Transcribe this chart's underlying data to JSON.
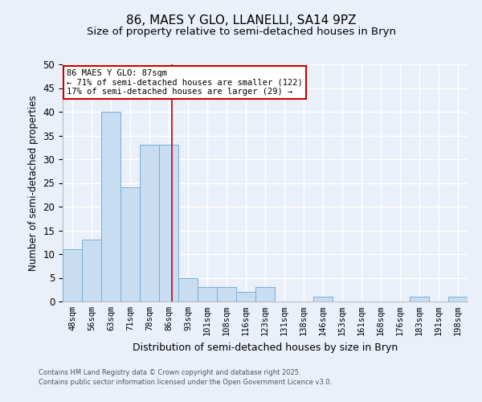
{
  "title": "86, MAES Y GLO, LLANELLI, SA14 9PZ",
  "subtitle": "Size of property relative to semi-detached houses in Bryn",
  "xlabel": "Distribution of semi-detached houses by size in Bryn",
  "ylabel": "Number of semi-detached properties",
  "bin_labels": [
    "48sqm",
    "56sqm",
    "63sqm",
    "71sqm",
    "78sqm",
    "86sqm",
    "93sqm",
    "101sqm",
    "108sqm",
    "116sqm",
    "123sqm",
    "131sqm",
    "138sqm",
    "146sqm",
    "153sqm",
    "161sqm",
    "168sqm",
    "176sqm",
    "183sqm",
    "191sqm",
    "198sqm"
  ],
  "bin_edges": [
    44.5,
    52,
    59.5,
    67,
    74.5,
    82,
    89.5,
    97,
    104.5,
    112,
    119.5,
    127,
    134.5,
    142,
    149.5,
    157,
    164.5,
    172,
    179.5,
    187,
    194.5,
    202
  ],
  "counts": [
    11,
    13,
    40,
    24,
    33,
    33,
    5,
    3,
    3,
    2,
    3,
    0,
    0,
    1,
    0,
    0,
    0,
    0,
    1,
    0,
    1
  ],
  "bar_color": "#c8ddf2",
  "bar_edge_color": "#7aadd4",
  "vline_x": 87,
  "vline_color": "#cc0000",
  "annotation_title": "86 MAES Y GLO: 87sqm",
  "annotation_line1": "← 71% of semi-detached houses are smaller (122)",
  "annotation_line2": "17% of semi-detached houses are larger (29) →",
  "annotation_box_color": "#ffffff",
  "annotation_box_edge": "#cc0000",
  "ylim": [
    0,
    50
  ],
  "yticks": [
    0,
    5,
    10,
    15,
    20,
    25,
    30,
    35,
    40,
    45,
    50
  ],
  "bg_color": "#eaf0fa",
  "footer1": "Contains HM Land Registry data © Crown copyright and database right 2025.",
  "footer2": "Contains public sector information licensed under the Open Government Licence v3.0.",
  "title_fontsize": 11,
  "subtitle_fontsize": 9.5
}
